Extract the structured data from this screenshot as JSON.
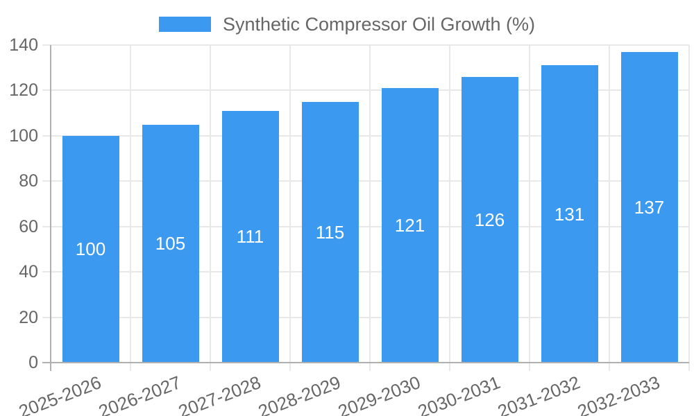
{
  "chart_data": {
    "type": "bar",
    "title": "Synthetic Compressor Oil Growth (%)",
    "categories": [
      "2025-2026",
      "2026-2027",
      "2027-2028",
      "2028-2029",
      "2029-2030",
      "2030-2031",
      "2031-2032",
      "2032-2033"
    ],
    "values": [
      100,
      105,
      111,
      115,
      121,
      126,
      131,
      137
    ],
    "xlabel": "",
    "ylabel": "",
    "ylim": [
      0,
      140
    ],
    "yticks": [
      0,
      20,
      40,
      60,
      80,
      100,
      120,
      140
    ],
    "grid": true,
    "legend_position": "top-center",
    "legend_label": "Synthetic Compressor Oil Growth (%)",
    "bar_color": "#3b9af0",
    "value_label_color": "#ffffff",
    "axis_text_color": "#666666",
    "axis_line_color": "#b0b0b0",
    "gridline_color": "#e8e8e8",
    "x_label_rotation_deg": -21
  }
}
